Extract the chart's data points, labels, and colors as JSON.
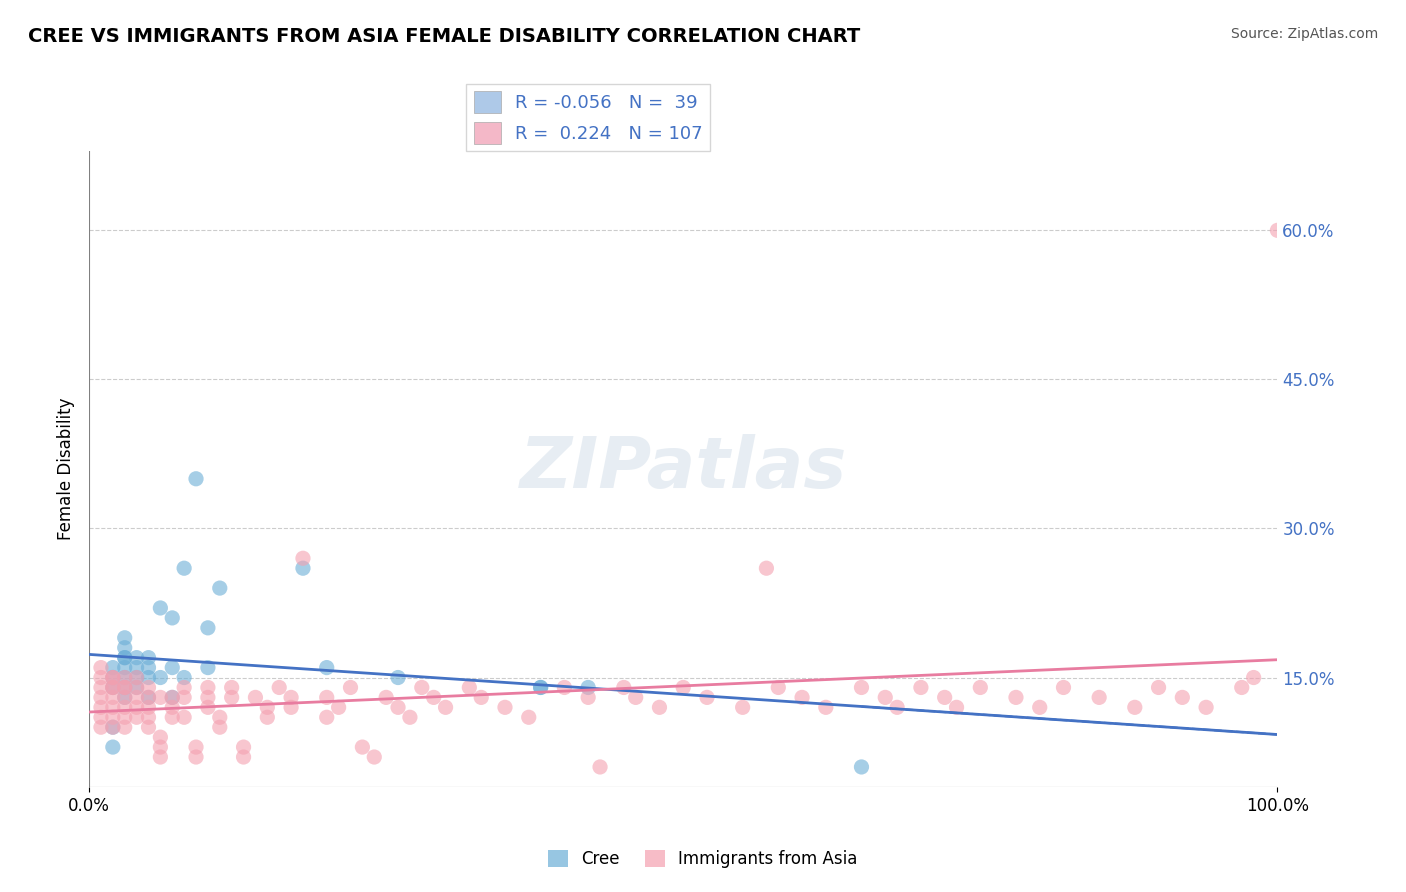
{
  "title": "CREE VS IMMIGRANTS FROM ASIA FEMALE DISABILITY CORRELATION CHART",
  "source": "Source: ZipAtlas.com",
  "ylabel": "Female Disability",
  "xmin": 0.0,
  "xmax": 1.0,
  "ymin": 0.04,
  "ymax": 0.68,
  "cree_R": -0.056,
  "cree_N": 39,
  "immigrants_R": 0.224,
  "immigrants_N": 107,
  "cree_color": "#6baed6",
  "immigrants_color": "#f4a0b0",
  "cree_line_color": "#4472c4",
  "immigrants_line_color": "#e87ca0",
  "legend_box_color_cree": "#aec9e8",
  "legend_box_color_immigrants": "#f4b8c8",
  "background_color": "#ffffff",
  "grid_color": "#cccccc",
  "source_color": "#555555",
  "watermark_text": "ZIPatlas",
  "cree_scatter": {
    "x": [
      0.02,
      0.02,
      0.02,
      0.02,
      0.02,
      0.03,
      0.03,
      0.03,
      0.03,
      0.03,
      0.03,
      0.03,
      0.03,
      0.04,
      0.04,
      0.04,
      0.04,
      0.05,
      0.05,
      0.05,
      0.05,
      0.06,
      0.06,
      0.07,
      0.07,
      0.07,
      0.08,
      0.08,
      0.09,
      0.1,
      0.1,
      0.11,
      0.18,
      0.2,
      0.26,
      0.38,
      0.38,
      0.42,
      0.65
    ],
    "y": [
      0.08,
      0.1,
      0.14,
      0.15,
      0.16,
      0.13,
      0.14,
      0.15,
      0.16,
      0.17,
      0.17,
      0.18,
      0.19,
      0.14,
      0.15,
      0.16,
      0.17,
      0.13,
      0.15,
      0.16,
      0.17,
      0.15,
      0.22,
      0.13,
      0.16,
      0.21,
      0.15,
      0.26,
      0.35,
      0.16,
      0.2,
      0.24,
      0.26,
      0.16,
      0.15,
      0.14,
      0.14,
      0.14,
      0.06
    ]
  },
  "immigrants_scatter": {
    "x": [
      0.01,
      0.01,
      0.01,
      0.01,
      0.01,
      0.01,
      0.01,
      0.02,
      0.02,
      0.02,
      0.02,
      0.02,
      0.02,
      0.02,
      0.02,
      0.03,
      0.03,
      0.03,
      0.03,
      0.03,
      0.03,
      0.03,
      0.04,
      0.04,
      0.04,
      0.04,
      0.04,
      0.05,
      0.05,
      0.05,
      0.05,
      0.05,
      0.06,
      0.06,
      0.06,
      0.06,
      0.07,
      0.07,
      0.07,
      0.08,
      0.08,
      0.08,
      0.09,
      0.09,
      0.1,
      0.1,
      0.1,
      0.11,
      0.11,
      0.12,
      0.12,
      0.13,
      0.13,
      0.14,
      0.15,
      0.15,
      0.16,
      0.17,
      0.17,
      0.18,
      0.2,
      0.2,
      0.21,
      0.22,
      0.23,
      0.24,
      0.25,
      0.26,
      0.27,
      0.28,
      0.29,
      0.3,
      0.32,
      0.33,
      0.35,
      0.37,
      0.4,
      0.42,
      0.43,
      0.45,
      0.46,
      0.48,
      0.5,
      0.52,
      0.55,
      0.57,
      0.58,
      0.6,
      0.62,
      0.65,
      0.67,
      0.68,
      0.7,
      0.72,
      0.73,
      0.75,
      0.78,
      0.8,
      0.82,
      0.85,
      0.88,
      0.9,
      0.92,
      0.94,
      0.97,
      0.98,
      1.0
    ],
    "y": [
      0.16,
      0.14,
      0.13,
      0.15,
      0.12,
      0.1,
      0.11,
      0.15,
      0.14,
      0.13,
      0.12,
      0.11,
      0.1,
      0.14,
      0.15,
      0.14,
      0.13,
      0.12,
      0.1,
      0.11,
      0.15,
      0.14,
      0.13,
      0.12,
      0.11,
      0.14,
      0.15,
      0.13,
      0.12,
      0.1,
      0.11,
      0.14,
      0.13,
      0.07,
      0.08,
      0.09,
      0.13,
      0.12,
      0.11,
      0.14,
      0.13,
      0.11,
      0.07,
      0.08,
      0.14,
      0.12,
      0.13,
      0.1,
      0.11,
      0.14,
      0.13,
      0.07,
      0.08,
      0.13,
      0.12,
      0.11,
      0.14,
      0.13,
      0.12,
      0.27,
      0.11,
      0.13,
      0.12,
      0.14,
      0.08,
      0.07,
      0.13,
      0.12,
      0.11,
      0.14,
      0.13,
      0.12,
      0.14,
      0.13,
      0.12,
      0.11,
      0.14,
      0.13,
      0.06,
      0.14,
      0.13,
      0.12,
      0.14,
      0.13,
      0.12,
      0.26,
      0.14,
      0.13,
      0.12,
      0.14,
      0.13,
      0.12,
      0.14,
      0.13,
      0.12,
      0.14,
      0.13,
      0.12,
      0.14,
      0.13,
      0.12,
      0.14,
      0.13,
      0.12,
      0.14,
      0.15,
      0.6
    ]
  }
}
